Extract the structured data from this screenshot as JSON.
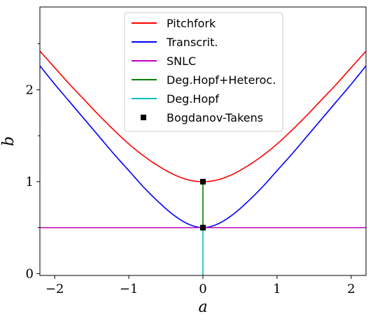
{
  "chart_data": {
    "type": "line",
    "xlabel": "a",
    "ylabel": "b",
    "xlim": [
      -2.2,
      2.2
    ],
    "ylim": [
      -0.02,
      2.9
    ],
    "x_ticks": [
      -2,
      -1,
      0,
      1,
      2
    ],
    "x_tick_labels": [
      "−2",
      "−1",
      "0",
      "1",
      "2"
    ],
    "y_ticks": [
      0,
      1,
      2
    ],
    "y_tick_labels": [
      "0",
      "1",
      "2"
    ],
    "y_minor_ticks": [
      0.5,
      1.5,
      2.5
    ],
    "grid": false,
    "legend_position": "top-center",
    "series": [
      {
        "name": "Pitchfork",
        "color": "#ff0000",
        "x": [
          -2.2,
          -2.0,
          -1.8,
          -1.6,
          -1.4,
          -1.2,
          -1.0,
          -0.8,
          -0.6,
          -0.4,
          -0.2,
          0.0,
          0.2,
          0.4,
          0.6,
          0.8,
          1.0,
          1.2,
          1.4,
          1.6,
          1.8,
          2.0,
          2.2
        ],
        "y": [
          2.42,
          2.24,
          2.06,
          1.89,
          1.72,
          1.56,
          1.41,
          1.28,
          1.17,
          1.08,
          1.02,
          1.0,
          1.02,
          1.08,
          1.17,
          1.28,
          1.41,
          1.56,
          1.72,
          1.89,
          2.06,
          2.24,
          2.42
        ]
      },
      {
        "name": "Transcrit.",
        "color": "#0000ff",
        "x": [
          -2.2,
          -2.0,
          -1.8,
          -1.6,
          -1.4,
          -1.2,
          -1.0,
          -0.8,
          -0.6,
          -0.4,
          -0.2,
          0.0,
          0.2,
          0.4,
          0.6,
          0.8,
          1.0,
          1.2,
          1.4,
          1.6,
          1.8,
          2.0,
          2.2
        ],
        "y": [
          2.26,
          2.06,
          1.87,
          1.68,
          1.49,
          1.3,
          1.12,
          0.94,
          0.78,
          0.64,
          0.54,
          0.5,
          0.54,
          0.64,
          0.78,
          0.94,
          1.12,
          1.3,
          1.49,
          1.68,
          1.87,
          2.06,
          2.26
        ]
      },
      {
        "name": "SNLC",
        "color": "#bf00bf",
        "x": [
          -2.2,
          2.2
        ],
        "y": [
          0.5,
          0.5
        ]
      },
      {
        "name": "Deg.Hopf+Heteroc.",
        "color": "#008000",
        "x": [
          0,
          0
        ],
        "y": [
          0.5,
          1.0
        ]
      },
      {
        "name": "Deg.Hopf",
        "color": "#00bfbf",
        "x": [
          0,
          0
        ],
        "y": [
          -0.02,
          0.5
        ]
      }
    ],
    "points": {
      "name": "Bogdanov-Takens",
      "color": "#000000",
      "marker": "square",
      "x": [
        0,
        0
      ],
      "y": [
        1.0,
        0.5
      ]
    }
  }
}
